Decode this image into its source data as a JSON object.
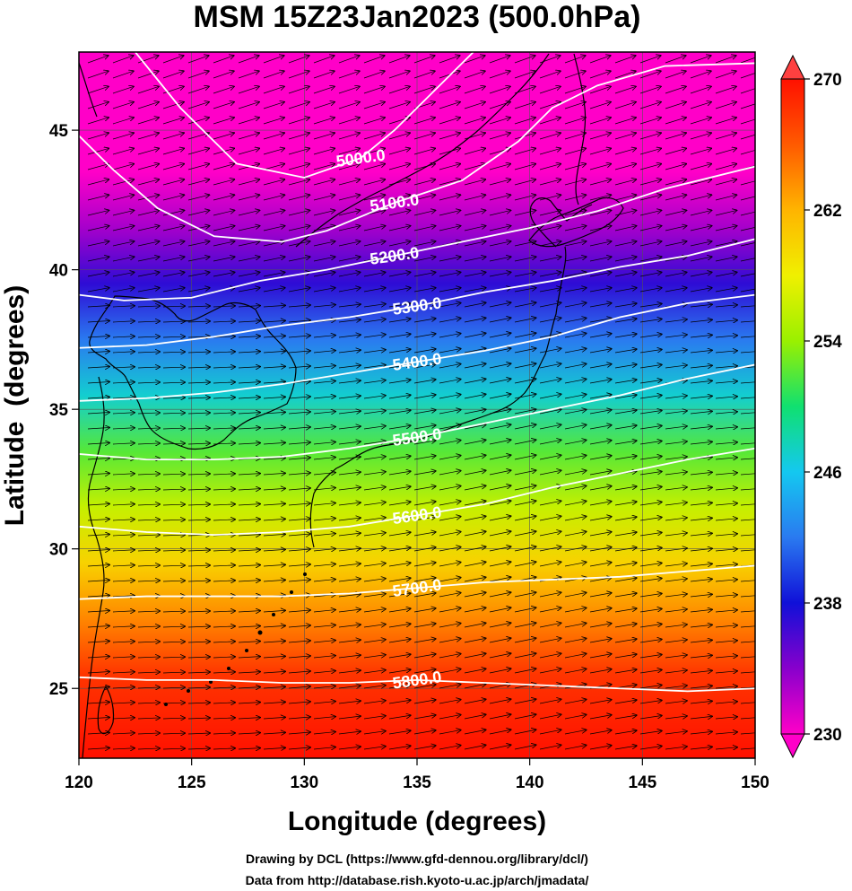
{
  "chart_data": {
    "type": "heatmap",
    "title": "MSM 15Z23Jan2023 (500.0hPa)",
    "xlabel": "Longitude (degrees)",
    "ylabel": "Latitude  (degrees)",
    "xlim": [
      120,
      150
    ],
    "ylim": [
      22.5,
      47.8
    ],
    "x_ticks": [
      "120",
      "125",
      "130",
      "135",
      "140",
      "145",
      "150"
    ],
    "y_ticks": [
      "25",
      "30",
      "35",
      "40",
      "45"
    ],
    "colorbar": {
      "ticks": [
        "230",
        "238",
        "246",
        "254",
        "262",
        "270"
      ],
      "range": [
        230,
        270
      ]
    },
    "shaded_field_bands": [
      {
        "lat": 47.8,
        "value": 230
      },
      {
        "lat": 43.5,
        "value": 230
      },
      {
        "lat": 41.5,
        "value": 233
      },
      {
        "lat": 39.5,
        "value": 237
      },
      {
        "lat": 37.5,
        "value": 242
      },
      {
        "lat": 35.5,
        "value": 247
      },
      {
        "lat": 33.5,
        "value": 252
      },
      {
        "lat": 31.5,
        "value": 256
      },
      {
        "lat": 29.5,
        "value": 260
      },
      {
        "lat": 27.5,
        "value": 264
      },
      {
        "lat": 25.5,
        "value": 268
      },
      {
        "lat": 22.5,
        "value": 270
      }
    ],
    "contours": [
      {
        "label": "5000.0",
        "points": [
          [
            122.5,
            47.8
          ],
          [
            124.5,
            45.8
          ],
          [
            127,
            43.8
          ],
          [
            130,
            43.3
          ],
          [
            132.5,
            44
          ],
          [
            134,
            45
          ],
          [
            136.5,
            47
          ],
          [
            137.5,
            47.8
          ]
        ]
      },
      {
        "label": "5100.0",
        "points": [
          [
            120,
            44.8
          ],
          [
            121.5,
            43.6
          ],
          [
            123.5,
            42.2
          ],
          [
            126,
            41.2
          ],
          [
            129,
            41
          ],
          [
            131,
            41.4
          ],
          [
            134,
            42.4
          ],
          [
            137,
            43.2
          ],
          [
            139.5,
            44.6
          ],
          [
            141,
            45.8
          ],
          [
            143,
            46.6
          ],
          [
            146,
            47.3
          ],
          [
            150,
            47.4
          ]
        ]
      },
      {
        "label": "5200.0",
        "points": [
          [
            120,
            39.1
          ],
          [
            122,
            38.9
          ],
          [
            125,
            39
          ],
          [
            128,
            39.6
          ],
          [
            131,
            40
          ],
          [
            134,
            40.5
          ],
          [
            137,
            41
          ],
          [
            140,
            41.5
          ],
          [
            143,
            42.1
          ],
          [
            146,
            42.9
          ],
          [
            150,
            43.7
          ]
        ]
      },
      {
        "label": "5300.0",
        "points": [
          [
            120,
            37.2
          ],
          [
            123,
            37.3
          ],
          [
            126,
            37.6
          ],
          [
            129,
            38
          ],
          [
            132,
            38.3
          ],
          [
            135,
            38.7
          ],
          [
            138,
            39.2
          ],
          [
            141,
            39.6
          ],
          [
            144,
            40.1
          ],
          [
            147,
            40.5
          ],
          [
            150,
            41.1
          ]
        ]
      },
      {
        "label": "5400.0",
        "points": [
          [
            120,
            35.3
          ],
          [
            123,
            35.4
          ],
          [
            126,
            35.6
          ],
          [
            129,
            35.9
          ],
          [
            132,
            36.3
          ],
          [
            135,
            36.7
          ],
          [
            138,
            37.1
          ],
          [
            141,
            37.6
          ],
          [
            144,
            38.3
          ],
          [
            147,
            38.8
          ],
          [
            150,
            39.1
          ]
        ]
      },
      {
        "label": "5500.0",
        "points": [
          [
            120,
            33.4
          ],
          [
            123,
            33.2
          ],
          [
            126,
            33.2
          ],
          [
            129,
            33.3
          ],
          [
            132,
            33.6
          ],
          [
            135,
            34
          ],
          [
            138,
            34.5
          ],
          [
            141,
            35
          ],
          [
            144,
            35.5
          ],
          [
            147,
            36.1
          ],
          [
            150,
            36.6
          ]
        ]
      },
      {
        "label": "5600.0",
        "points": [
          [
            120,
            30.8
          ],
          [
            123,
            30.6
          ],
          [
            126,
            30.5
          ],
          [
            129,
            30.6
          ],
          [
            132,
            30.8
          ],
          [
            135,
            31.2
          ],
          [
            138,
            31.6
          ],
          [
            141,
            32.2
          ],
          [
            144,
            32.7
          ],
          [
            147,
            33.2
          ],
          [
            150,
            33.6
          ]
        ]
      },
      {
        "label": "5700.0",
        "points": [
          [
            120,
            28.2
          ],
          [
            123,
            28.3
          ],
          [
            126,
            28.3
          ],
          [
            129,
            28.3
          ],
          [
            132,
            28.4
          ],
          [
            135,
            28.6
          ],
          [
            138,
            28.8
          ],
          [
            141,
            28.9
          ],
          [
            144,
            29
          ],
          [
            147,
            29.2
          ],
          [
            150,
            29.4
          ]
        ]
      },
      {
        "label": "5800.0",
        "points": [
          [
            120,
            25.4
          ],
          [
            123,
            25.3
          ],
          [
            126,
            25.3
          ],
          [
            129,
            25.2
          ],
          [
            132,
            25.2
          ],
          [
            135,
            25.3
          ],
          [
            138,
            25.2
          ],
          [
            141,
            25.1
          ],
          [
            144,
            25
          ],
          [
            147,
            24.9
          ],
          [
            150,
            25
          ]
        ]
      }
    ],
    "grid": true
  },
  "credits": {
    "line1": "Drawing by DCL (https://www.gfd-dennou.org/library/dcl/)",
    "line2": "Data from http://database.rish.kyoto-u.ac.jp/arch/jmadata/"
  },
  "colors": {
    "palette": [
      "#ff00c8",
      "#8800cc",
      "#1010d8",
      "#2a7af0",
      "#14c8f0",
      "#10e070",
      "#9af000",
      "#f0f000",
      "#ffb400",
      "#ff5a00",
      "#ff1000"
    ],
    "contour": "#ffffff",
    "vector": "#000000"
  }
}
